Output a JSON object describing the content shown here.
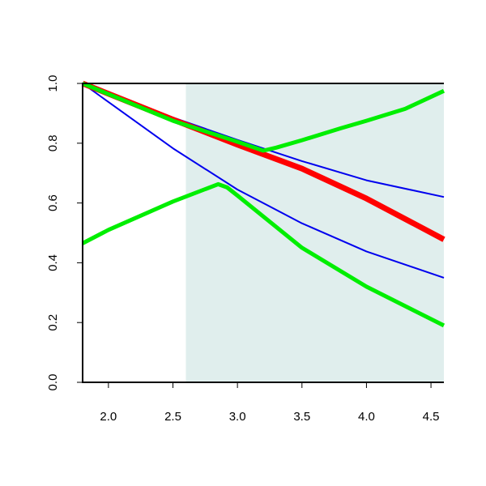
{
  "chart_data": {
    "type": "line",
    "title": "",
    "xlabel": "",
    "ylabel": "",
    "xlim": [
      1.8,
      4.6
    ],
    "ylim": [
      0.0,
      1.0
    ],
    "x_ticks": [
      2.0,
      2.5,
      3.0,
      3.5,
      4.0,
      4.5
    ],
    "x_tick_labels": [
      "2.0",
      "2.5",
      "3.0",
      "3.5",
      "4.0",
      "4.5"
    ],
    "y_ticks": [
      0.0,
      0.2,
      0.4,
      0.6,
      0.8,
      1.0
    ],
    "y_tick_labels": [
      "0.0",
      "0.2",
      "0.4",
      "0.6",
      "0.8",
      "1.0"
    ],
    "grid": false,
    "legend": "none",
    "shaded_region": {
      "x_start": 2.6,
      "x_end": 4.6,
      "color": "#e0eeed"
    },
    "series": [
      {
        "color": "#0000ee",
        "line_width": "thin",
        "x": [
          1.8,
          2.5,
          3.0,
          3.5,
          4.0,
          4.6
        ],
        "y": [
          1.0,
          0.886,
          0.811,
          0.74,
          0.676,
          0.62
        ]
      },
      {
        "color": "#0000ee",
        "line_width": "thin",
        "x": [
          1.8,
          2.5,
          3.0,
          3.5,
          4.0,
          4.6
        ],
        "y": [
          1.0,
          0.783,
          0.645,
          0.532,
          0.438,
          0.35
        ]
      },
      {
        "color": "#ff0000",
        "line_width": "thick",
        "x": [
          1.8,
          2.5,
          3.0,
          3.5,
          4.0,
          4.6
        ],
        "y": [
          1.0,
          0.879,
          0.795,
          0.715,
          0.615,
          0.478
        ]
      },
      {
        "color": "#00ee00",
        "line_width": "medium",
        "x": [
          1.8,
          2.5,
          3.0,
          3.2,
          3.3,
          3.5,
          3.8,
          4.0,
          4.3,
          4.6
        ],
        "y": [
          1.0,
          0.875,
          0.805,
          0.775,
          0.785,
          0.81,
          0.85,
          0.875,
          0.915,
          0.975
        ]
      },
      {
        "color": "#00ee00",
        "line_width": "medium",
        "x": [
          1.8,
          2.0,
          2.5,
          2.85,
          2.92,
          3.0,
          3.5,
          4.0,
          4.6
        ],
        "y": [
          0.465,
          0.51,
          0.605,
          0.663,
          0.652,
          0.625,
          0.45,
          0.32,
          0.19
        ]
      }
    ]
  }
}
